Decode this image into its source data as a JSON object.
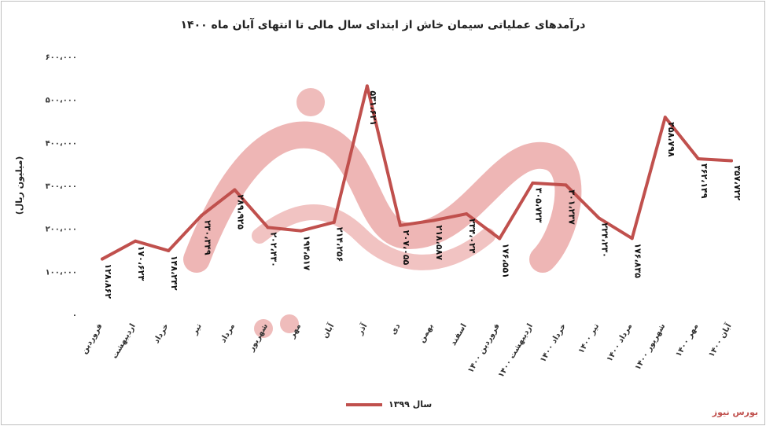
{
  "chart_data": {
    "type": "line",
    "title": "درآمدهای عملیاتی سیمان خاش از ابتدای سال مالی تا انتهای آبان ماه ۱۴۰۰",
    "ylabel": "(میلیون ریال)",
    "xlabel": "",
    "ylim": [
      0,
      600000
    ],
    "yticks": [
      "۰",
      "۱۰۰،۰۰۰",
      "۲۰۰،۰۰۰",
      "۳۰۰،۰۰۰",
      "۴۰۰،۰۰۰",
      "۵۰۰،۰۰۰",
      "۶۰۰،۰۰۰"
    ],
    "categories": [
      "فروردین",
      "اردیبهشت",
      "خرداد",
      "تیر",
      "مرداد",
      "شهریور",
      "مهر",
      "آبان",
      "آذر",
      "دی",
      "بهمن",
      "اسفند",
      "فروردین ۱۴۰۰",
      "اردیبهشت ۱۴۰۰",
      "خرداد ۱۴۰۰",
      "تیر ۱۴۰۰",
      "مرداد ۱۴۰۰",
      "شهریور ۱۴۰۰",
      "مهر ۱۴۰۰",
      "آبان ۱۴۰۰"
    ],
    "series": [
      {
        "name": "سال ۱۳۹۹",
        "color": "#c0504d",
        "values": [
          128862,
          170623,
          148242,
          230349,
          289925,
          202430,
          194517,
          214256,
          531621,
          207055,
          218587,
          234024,
          176551,
          305723,
          301237,
          224230,
          176835,
          458798,
          362149,
          357722
        ],
        "labels": [
          "۱۲۸،۸۶۲",
          "۱۷۰،۶۲۳",
          "۱۴۸،۲۴۲",
          "۲۳۰،۳۴۹",
          "۲۸۹،۹۲۵",
          "۲۰۲،۴۳۰",
          "۱۹۴،۵۱۷",
          "۲۱۴،۲۵۶",
          "۵۳۱،۶۲۱",
          "۲۰۷،۰۵۵",
          "۲۱۸،۵۸۷",
          "۲۳۴،۰۲۴",
          "۱۷۶،۵۵۱",
          "۳۰۵،۷۲۳",
          "۳۰۱،۲۳۷",
          "۲۲۴،۲۳۰",
          "۱۷۶،۸۳۵",
          "۴۵۸،۷۹۸",
          "۳۶۲،۱۴۹",
          "۳۵۷،۷۲۲"
        ]
      }
    ],
    "grid": false,
    "legend_position": "bottom"
  },
  "brand": "بورس نیوز",
  "watermark": "بورس نیوز"
}
